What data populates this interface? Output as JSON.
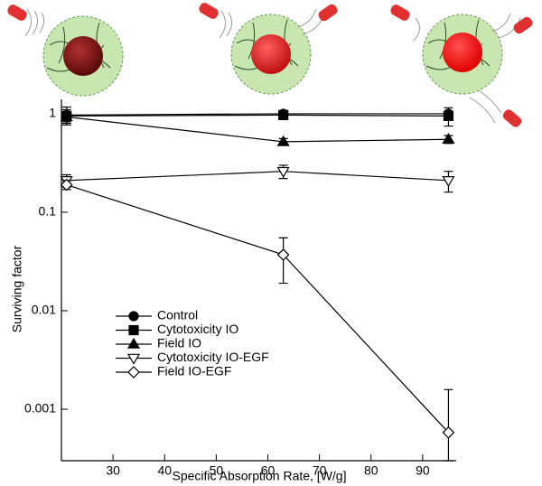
{
  "chart_data": {
    "type": "line",
    "log_y": true,
    "x_label": "Specific Absorption Rate, [W/g]",
    "y_label": "Surviving factor",
    "x": [
      21,
      63,
      95
    ],
    "xlim": [
      20,
      96.5
    ],
    "xticks": [
      30,
      40,
      50,
      60,
      70,
      80,
      90
    ],
    "ylim": [
      0.0003,
      1.4
    ],
    "yticks": [
      1,
      0.1,
      0.01,
      0.001
    ],
    "series": [
      {
        "name": "Control",
        "color": "#000000",
        "marker": "circle",
        "values": [
          0.97,
          1.0,
          1.0
        ],
        "errors": [
          0.2,
          0.05,
          0.05
        ]
      },
      {
        "name": "Cytotoxicity IO",
        "color": "#000000",
        "marker": "square",
        "values": [
          0.95,
          0.97,
          0.95
        ],
        "errors": [
          0.15,
          0.08,
          0.2
        ]
      },
      {
        "name": "Field IO",
        "color": "#000000",
        "marker": "triangle",
        "values": [
          0.93,
          0.52,
          0.55
        ],
        "errors": [
          0.1,
          0.04,
          0.05
        ]
      },
      {
        "name": "Cytotoxicity IO-EGF",
        "color": "#000000",
        "marker": "triangle-down",
        "values": [
          0.21,
          0.26,
          0.21
        ],
        "errors": [
          0.03,
          0.04,
          0.05
        ]
      },
      {
        "name": "Field IO-EGF",
        "color": "#000000",
        "marker": "diamond",
        "values": [
          0.19,
          0.037,
          0.00058
        ],
        "errors": [
          0.02,
          0.018,
          0.001
        ]
      }
    ],
    "legend": "lower-left"
  }
}
